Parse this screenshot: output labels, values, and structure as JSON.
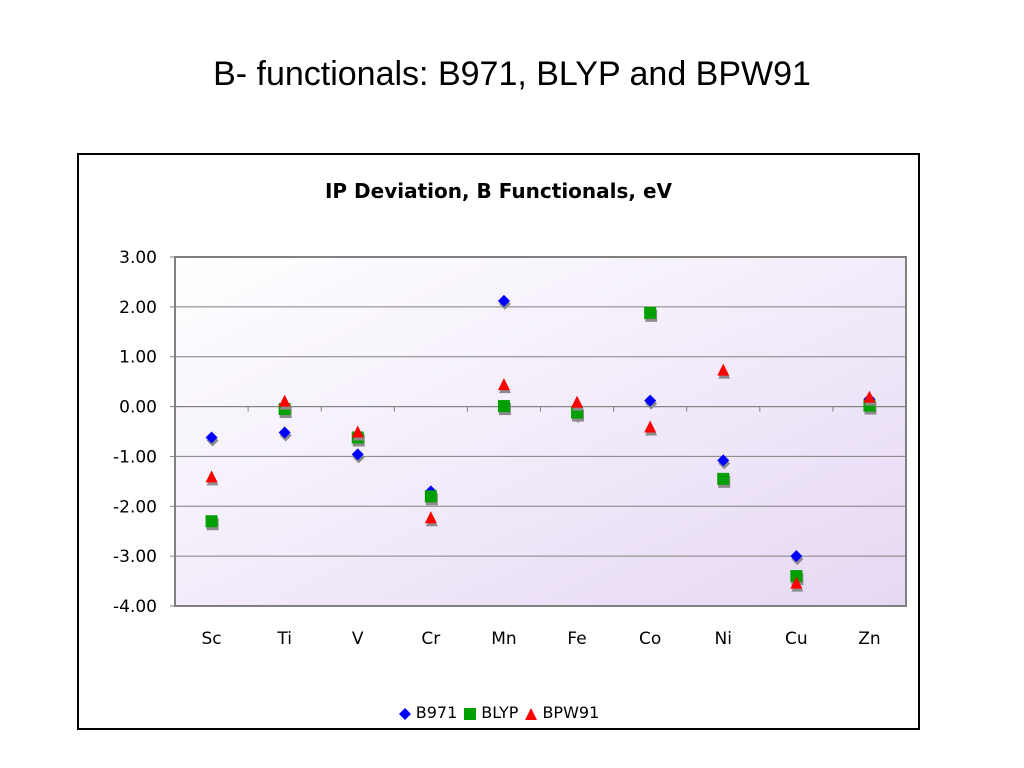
{
  "slide": {
    "title": "B- functionals: B971, BLYP and BPW91"
  },
  "chart_data": {
    "type": "scatter",
    "title": "IP Deviation, B Functionals, eV",
    "xlabel": "",
    "ylabel": "",
    "categories": [
      "Sc",
      "Ti",
      "V",
      "Cr",
      "Mn",
      "Fe",
      "Co",
      "Ni",
      "Cu",
      "Zn"
    ],
    "ylim": [
      -4.0,
      3.0
    ],
    "yticks": [
      "3.00",
      "2.00",
      "1.00",
      "0.00",
      "-1.00",
      "-2.00",
      "-3.00",
      "-4.00"
    ],
    "grid": true,
    "legend_position": "bottom",
    "series": [
      {
        "name": "B971",
        "marker": "diamond",
        "color": "#0000FF",
        "values": [
          -0.62,
          -0.52,
          -0.96,
          -1.7,
          2.12,
          -0.15,
          0.12,
          -1.08,
          -3.0,
          0.15
        ]
      },
      {
        "name": "BLYP",
        "marker": "square",
        "color": "#00A000",
        "values": [
          -2.3,
          -0.05,
          -0.62,
          -1.8,
          0.01,
          -0.12,
          1.88,
          -1.45,
          -3.4,
          0.02
        ]
      },
      {
        "name": "BPW91",
        "marker": "triangle",
        "color": "#FF0000",
        "values": [
          -1.42,
          0.1,
          -0.52,
          -2.24,
          0.43,
          0.08,
          -0.42,
          0.72,
          -3.55,
          0.18
        ]
      }
    ]
  }
}
